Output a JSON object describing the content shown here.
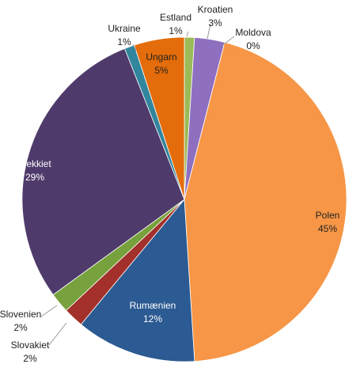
{
  "chart_data": {
    "type": "pie",
    "categories": [
      "Estland",
      "Kroatien",
      "Moldova",
      "Polen",
      "Rumænien",
      "Slovakiet",
      "Slovenien",
      "Tjekkiet",
      "Ukraine",
      "Ungarn"
    ],
    "values": [
      1,
      3,
      0,
      45,
      12,
      2,
      2,
      29,
      1,
      5
    ],
    "value_labels": [
      "1%",
      "3%",
      "0%",
      "45%",
      "12%",
      "2%",
      "2%",
      "29%",
      "1%",
      "5%"
    ],
    "colors": [
      "#9bbb59",
      "#8e6fc0",
      "#4bacc6",
      "#f79646",
      "#2c5a92",
      "#a3302b",
      "#77a13c",
      "#4f3b6b",
      "#31859c",
      "#e46c0a"
    ]
  }
}
